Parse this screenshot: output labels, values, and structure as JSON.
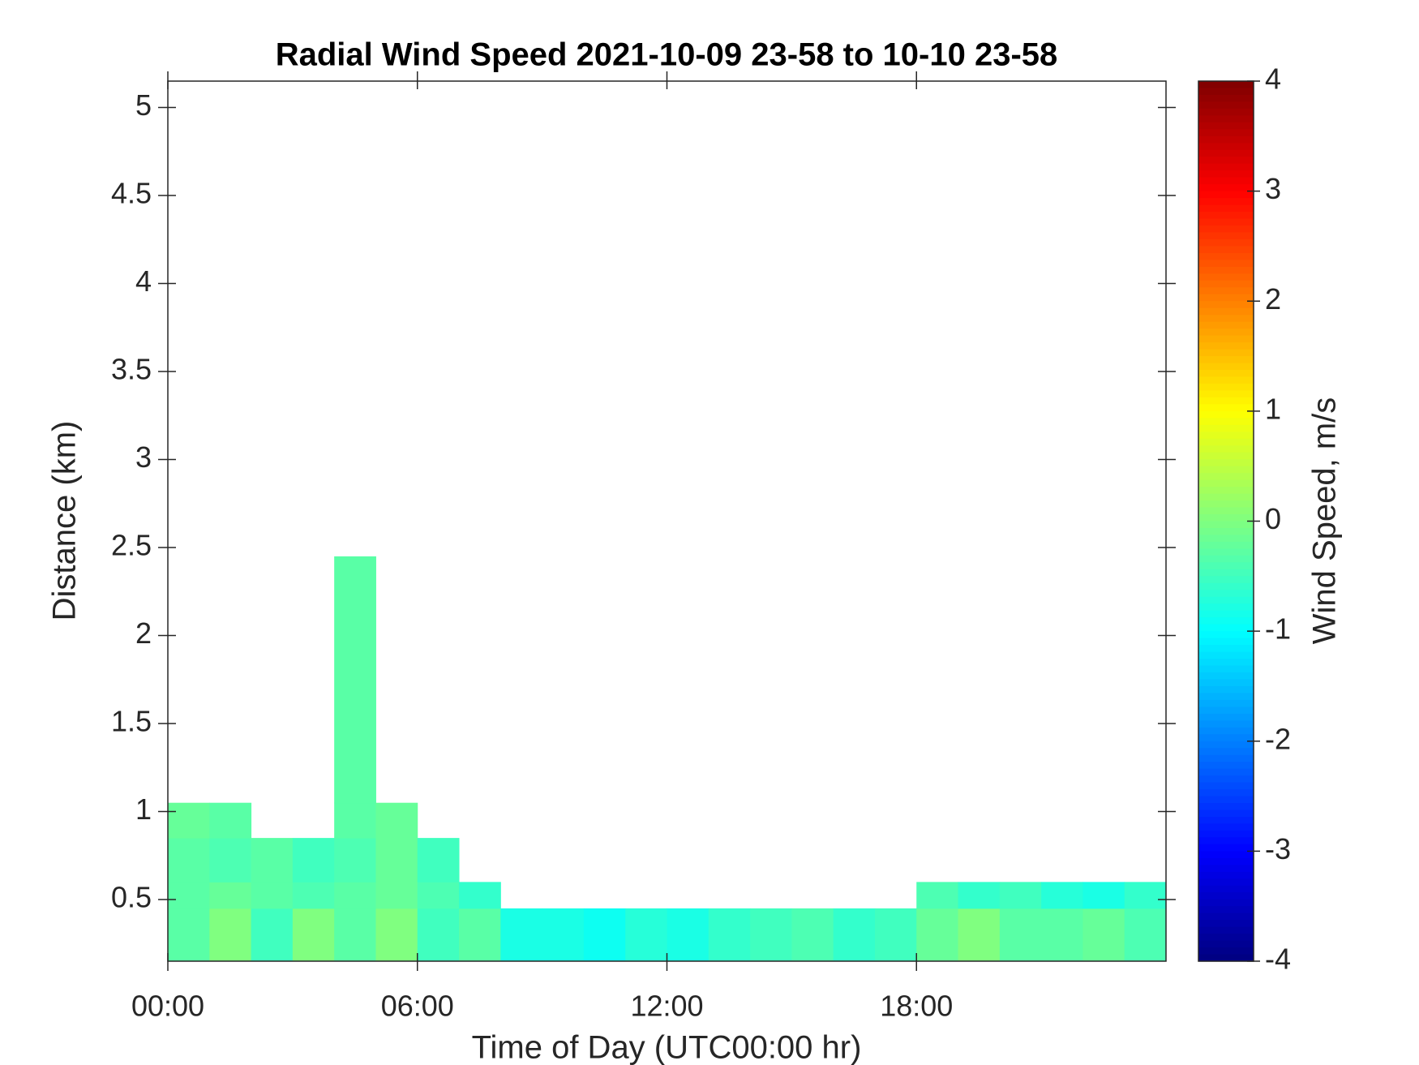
{
  "chart_data": {
    "type": "heatmap",
    "title": "Radial Wind Speed 2021-10-09 23-58 to 10-10 23-58",
    "x_label": "Time of Day (UTC00:00 hr)",
    "y_label": "Distance (km)",
    "colorbar_label": "Wind Speed, m/s",
    "colormap": "jet",
    "xbins": [
      0,
      1,
      2,
      3,
      4,
      5,
      6,
      7,
      8,
      9,
      10,
      11,
      12,
      13,
      14,
      15,
      16,
      17,
      18,
      19,
      20,
      21,
      22,
      23,
      24
    ],
    "ybins": [
      0.15,
      0.45,
      0.6,
      0.85,
      1.05,
      2.45
    ],
    "values": [
      [
        -0.3,
        0,
        -0.5,
        0,
        -0.3,
        0,
        -0.5,
        -0.3,
        -0.8,
        -0.8,
        -0.9,
        -0.7,
        -0.8,
        -0.6,
        -0.5,
        -0.4,
        -0.6,
        -0.5,
        -0.2,
        0,
        -0.3,
        -0.3,
        -0.2,
        -0.4
      ],
      [
        -0.3,
        -0.2,
        -0.3,
        -0.4,
        -0.3,
        -0.2,
        -0.4,
        -0.6,
        null,
        null,
        null,
        null,
        null,
        null,
        null,
        null,
        null,
        null,
        -0.4,
        -0.6,
        -0.5,
        -0.7,
        -0.8,
        -0.6
      ],
      [
        -0.3,
        -0.4,
        -0.3,
        -0.5,
        -0.4,
        -0.2,
        -0.5,
        null,
        null,
        null,
        null,
        null,
        null,
        null,
        null,
        null,
        null,
        null,
        null,
        null,
        null,
        null,
        null,
        null
      ],
      [
        -0.2,
        -0.3,
        null,
        null,
        -0.3,
        -0.2,
        null,
        null,
        null,
        null,
        null,
        null,
        null,
        null,
        null,
        null,
        null,
        null,
        null,
        null,
        null,
        null,
        null,
        null
      ],
      [
        null,
        null,
        null,
        null,
        -0.3,
        null,
        null,
        null,
        null,
        null,
        null,
        null,
        null,
        null,
        null,
        null,
        null,
        null,
        null,
        null,
        null,
        null,
        null,
        null
      ]
    ],
    "xlim": [
      0,
      24
    ],
    "xticks": [
      {
        "value": 0,
        "label": "00:00"
      },
      {
        "value": 6,
        "label": "06:00"
      },
      {
        "value": 12,
        "label": "12:00"
      },
      {
        "value": 18,
        "label": "18:00"
      }
    ],
    "ylim": [
      0.15,
      5.15
    ],
    "yticks": [
      0.5,
      1,
      1.5,
      2,
      2.5,
      3,
      3.5,
      4,
      4.5,
      5
    ],
    "clim": [
      -4,
      4
    ],
    "cticks": [
      -4,
      -3,
      -2,
      -1,
      0,
      1,
      2,
      3,
      4
    ]
  }
}
